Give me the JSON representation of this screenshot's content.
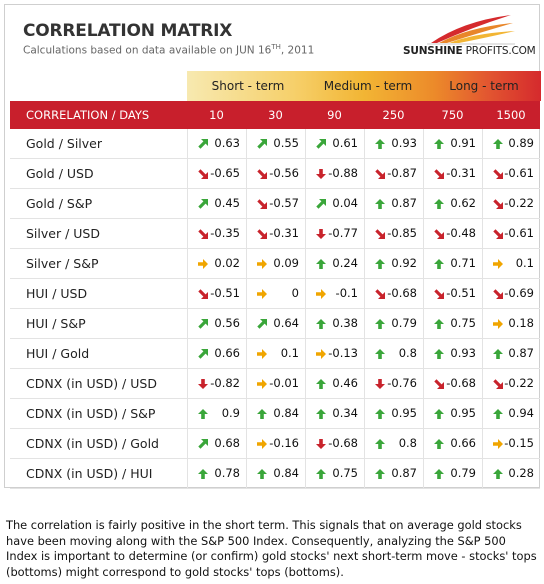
{
  "title": "CORRELATION MATRIX",
  "subtitle_prefix": "Calculations based on data available on  JUN 16",
  "subtitle_sup": "TH",
  "subtitle_suffix": ", 2011",
  "logo": {
    "sunshine": "SUNSHINE",
    "profits": " PROFITS.COM"
  },
  "terms": [
    "Short - term",
    "Medium - term",
    "Long - term"
  ],
  "header": {
    "label": "CORRELATION / DAYS",
    "days": [
      "10",
      "30",
      "90",
      "250",
      "750",
      "1500"
    ]
  },
  "colors": {
    "up": "#3aa63a",
    "down": "#c8232c",
    "flat": "#f0a500",
    "header": "#c81f2c"
  },
  "rows": [
    {
      "label": "Gold / Silver",
      "values": [
        "0.63",
        "0.55",
        "0.61",
        "0.93",
        "0.91",
        "0.89"
      ],
      "trends": [
        "up-right",
        "up-right",
        "up-right",
        "up",
        "up",
        "up"
      ]
    },
    {
      "label": "Gold / USD",
      "values": [
        "-0.65",
        "-0.56",
        "-0.88",
        "-0.87",
        "-0.31",
        "-0.61"
      ],
      "trends": [
        "down-right",
        "down-right",
        "down",
        "down-right",
        "down-right",
        "down-right"
      ]
    },
    {
      "label": "Gold / S&P",
      "values": [
        "0.45",
        "-0.57",
        "0.04",
        "0.87",
        "0.62",
        "-0.22"
      ],
      "trends": [
        "up-right",
        "down-right",
        "up-right",
        "up",
        "up",
        "down-right"
      ]
    },
    {
      "label": "Silver / USD",
      "values": [
        "-0.35",
        "-0.31",
        "-0.77",
        "-0.85",
        "-0.48",
        "-0.61"
      ],
      "trends": [
        "down-right",
        "down-right",
        "down",
        "down-right",
        "down-right",
        "down-right"
      ]
    },
    {
      "label": "Silver / S&P",
      "values": [
        "0.02",
        "0.09",
        "0.24",
        "0.92",
        "0.71",
        "0.1"
      ],
      "trends": [
        "flat",
        "flat",
        "up",
        "up",
        "up",
        "flat"
      ]
    },
    {
      "label": "HUI / USD",
      "values": [
        "-0.51",
        "0",
        "-0.1",
        "-0.68",
        "-0.51",
        "-0.69"
      ],
      "trends": [
        "down-right",
        "flat",
        "flat",
        "down-right",
        "down-right",
        "down-right"
      ]
    },
    {
      "label": "HUI / S&P",
      "values": [
        "0.56",
        "0.64",
        "0.38",
        "0.79",
        "0.75",
        "0.18"
      ],
      "trends": [
        "up-right",
        "up-right",
        "up",
        "up",
        "up",
        "flat"
      ]
    },
    {
      "label": "HUI / Gold",
      "values": [
        "0.66",
        "0.1",
        "-0.13",
        "0.8",
        "0.93",
        "0.87"
      ],
      "trends": [
        "up-right",
        "flat",
        "flat",
        "up",
        "up",
        "up"
      ]
    },
    {
      "label": "CDNX (in USD) / USD",
      "values": [
        "-0.82",
        "-0.01",
        "0.46",
        "-0.76",
        "-0.68",
        "-0.22"
      ],
      "trends": [
        "down",
        "flat",
        "up",
        "down",
        "down-right",
        "down-right"
      ]
    },
    {
      "label": "CDNX (in USD) / S&P",
      "values": [
        "0.9",
        "0.84",
        "0.34",
        "0.95",
        "0.95",
        "0.94"
      ],
      "trends": [
        "up",
        "up",
        "up",
        "up",
        "up",
        "up"
      ]
    },
    {
      "label": "CDNX (in USD) / Gold",
      "values": [
        "0.68",
        "-0.16",
        "-0.68",
        "0.8",
        "0.66",
        "-0.15"
      ],
      "trends": [
        "up-right",
        "flat",
        "down",
        "up",
        "up",
        "flat"
      ]
    },
    {
      "label": "CDNX (in USD) / HUI",
      "values": [
        "0.78",
        "0.84",
        "0.75",
        "0.87",
        "0.79",
        "0.28"
      ],
      "trends": [
        "up",
        "up",
        "up",
        "up",
        "up",
        "up"
      ]
    }
  ],
  "note": "The correlation is fairly positive in the short term. This signals that on average gold stocks have been moving along with the S&P 500 Index. Consequently, analyzing the S&P 500 Index is important to determine (or confirm) gold stocks' next short-term move - stocks' tops (bottoms) might correspond to gold stocks' tops (bottoms)."
}
